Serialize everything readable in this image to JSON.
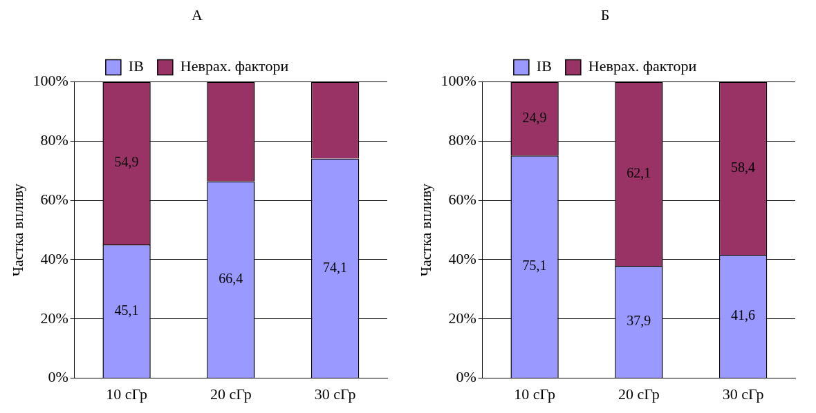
{
  "chart_data": [
    {
      "type": "bar",
      "title": "А",
      "ylabel": "Частка впливу",
      "categories": [
        "10 сГр",
        "20 сГр",
        "30 сГр"
      ],
      "stacked": true,
      "grid": "y",
      "legend": "top",
      "ylim": [
        0,
        100
      ],
      "yticks": [
        {
          "value": 0,
          "label": "0%"
        },
        {
          "value": 20,
          "label": "20%"
        },
        {
          "value": 40,
          "label": "40%"
        },
        {
          "value": 60,
          "label": "60%"
        },
        {
          "value": 80,
          "label": "80%"
        },
        {
          "value": 100,
          "label": "100%"
        }
      ],
      "series": [
        {
          "name": "IВ",
          "color": "#9999ff",
          "values": [
            45.1,
            66.4,
            74.1
          ],
          "value_labels": [
            "45,1",
            "66,4",
            "74,1"
          ]
        },
        {
          "name": "Неврах. фактори",
          "color": "#993366",
          "values": [
            54.9,
            33.6,
            25.9
          ],
          "value_labels": [
            "54,9",
            null,
            null
          ]
        }
      ]
    },
    {
      "type": "bar",
      "title": "Б",
      "ylabel": "Частка впливу",
      "categories": [
        "10 сГр",
        "20 сГр",
        "30 сГр"
      ],
      "stacked": true,
      "grid": "y",
      "legend": "top",
      "ylim": [
        0,
        100
      ],
      "yticks": [
        {
          "value": 0,
          "label": "0%"
        },
        {
          "value": 20,
          "label": "20%"
        },
        {
          "value": 40,
          "label": "40%"
        },
        {
          "value": 60,
          "label": "60%"
        },
        {
          "value": 80,
          "label": "80%"
        },
        {
          "value": 100,
          "label": "100%"
        }
      ],
      "series": [
        {
          "name": "IВ",
          "color": "#9999ff",
          "values": [
            75.1,
            37.9,
            41.6
          ],
          "value_labels": [
            "75,1",
            "37,9",
            "41,6"
          ]
        },
        {
          "name": "Неврах. фактори",
          "color": "#993366",
          "values": [
            24.9,
            62.1,
            58.4
          ],
          "value_labels": [
            "24,9",
            "62,1",
            "58,4"
          ]
        }
      ]
    }
  ]
}
